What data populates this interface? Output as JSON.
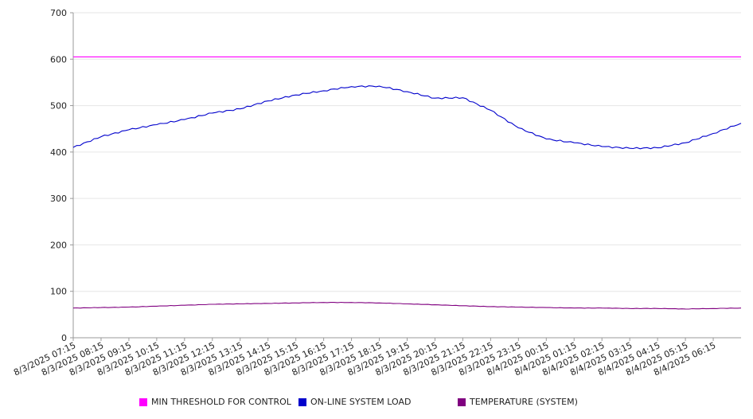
{
  "chart_data": {
    "type": "line",
    "title": "",
    "xlabel": "",
    "ylabel": "",
    "ylim": [
      0,
      700
    ],
    "yticks": [
      0,
      100,
      200,
      300,
      400,
      500,
      600,
      700
    ],
    "grid": true,
    "legend_position": "bottom",
    "x_tick_labels": [
      "8/3/2025 07:15",
      "8/3/2025 08:15",
      "8/3/2025 09:15",
      "8/3/2025 10:15",
      "8/3/2025 11:15",
      "8/3/2025 12:15",
      "8/3/2025 13:15",
      "8/3/2025 14:15",
      "8/3/2025 15:15",
      "8/3/2025 16:15",
      "8/3/2025 17:15",
      "8/3/2025 18:15",
      "8/3/2025 19:15",
      "8/3/2025 20:15",
      "8/3/2025 21:15",
      "8/3/2025 22:15",
      "8/3/2025 23:15",
      "8/4/2025 00:15",
      "8/4/2025 01:15",
      "8/4/2025 02:15",
      "8/4/2025 03:15",
      "8/4/2025 04:15",
      "8/4/2025 05:15",
      "8/4/2025 06:15"
    ],
    "x_end": "8/4/2025 07:15",
    "series": [
      {
        "name": "MIN THRESHOLD FOR CONTROL",
        "color": "#ff00ff",
        "x": [
          "8/3/2025 07:15",
          "8/4/2025 07:15"
        ],
        "values": [
          605,
          605
        ]
      },
      {
        "name": "ON-LINE SYSTEM LOAD",
        "color": "#0000cc",
        "x": [
          "8/3/2025 07:15",
          "8/3/2025 08:15",
          "8/3/2025 09:15",
          "8/3/2025 10:15",
          "8/3/2025 11:15",
          "8/3/2025 12:15",
          "8/3/2025 13:15",
          "8/3/2025 14:15",
          "8/3/2025 15:15",
          "8/3/2025 16:15",
          "8/3/2025 17:15",
          "8/3/2025 18:15",
          "8/3/2025 19:15",
          "8/3/2025 20:15",
          "8/3/2025 21:15",
          "8/3/2025 22:15",
          "8/3/2025 23:15",
          "8/4/2025 00:15",
          "8/4/2025 01:15",
          "8/4/2025 02:15",
          "8/4/2025 03:15",
          "8/4/2025 04:15",
          "8/4/2025 05:15",
          "8/4/2025 06:15",
          "8/4/2025 07:15"
        ],
        "values": [
          410,
          433,
          448,
          459,
          470,
          484,
          493,
          510,
          523,
          532,
          541,
          542,
          530,
          516,
          517,
          490,
          452,
          428,
          420,
          412,
          408,
          409,
          420,
          440,
          462
        ]
      },
      {
        "name": "TEMPERATURE (SYSTEM)",
        "color": "#800080",
        "x": [
          "8/3/2025 07:15",
          "8/3/2025 08:15",
          "8/3/2025 09:15",
          "8/3/2025 10:15",
          "8/3/2025 11:15",
          "8/3/2025 12:15",
          "8/3/2025 13:15",
          "8/3/2025 14:15",
          "8/3/2025 15:15",
          "8/3/2025 16:15",
          "8/3/2025 17:15",
          "8/3/2025 18:15",
          "8/3/2025 19:15",
          "8/3/2025 20:15",
          "8/3/2025 21:15",
          "8/3/2025 22:15",
          "8/3/2025 23:15",
          "8/4/2025 00:15",
          "8/4/2025 01:15",
          "8/4/2025 02:15",
          "8/4/2025 03:15",
          "8/4/2025 04:15",
          "8/4/2025 05:15",
          "8/4/2025 06:15",
          "8/4/2025 07:15"
        ],
        "values": [
          64,
          65,
          66,
          68,
          70,
          72,
          73,
          74,
          75,
          76,
          76,
          75,
          73,
          71,
          69,
          67,
          66,
          65,
          64,
          64,
          63,
          63,
          62,
          63,
          64
        ]
      }
    ]
  }
}
